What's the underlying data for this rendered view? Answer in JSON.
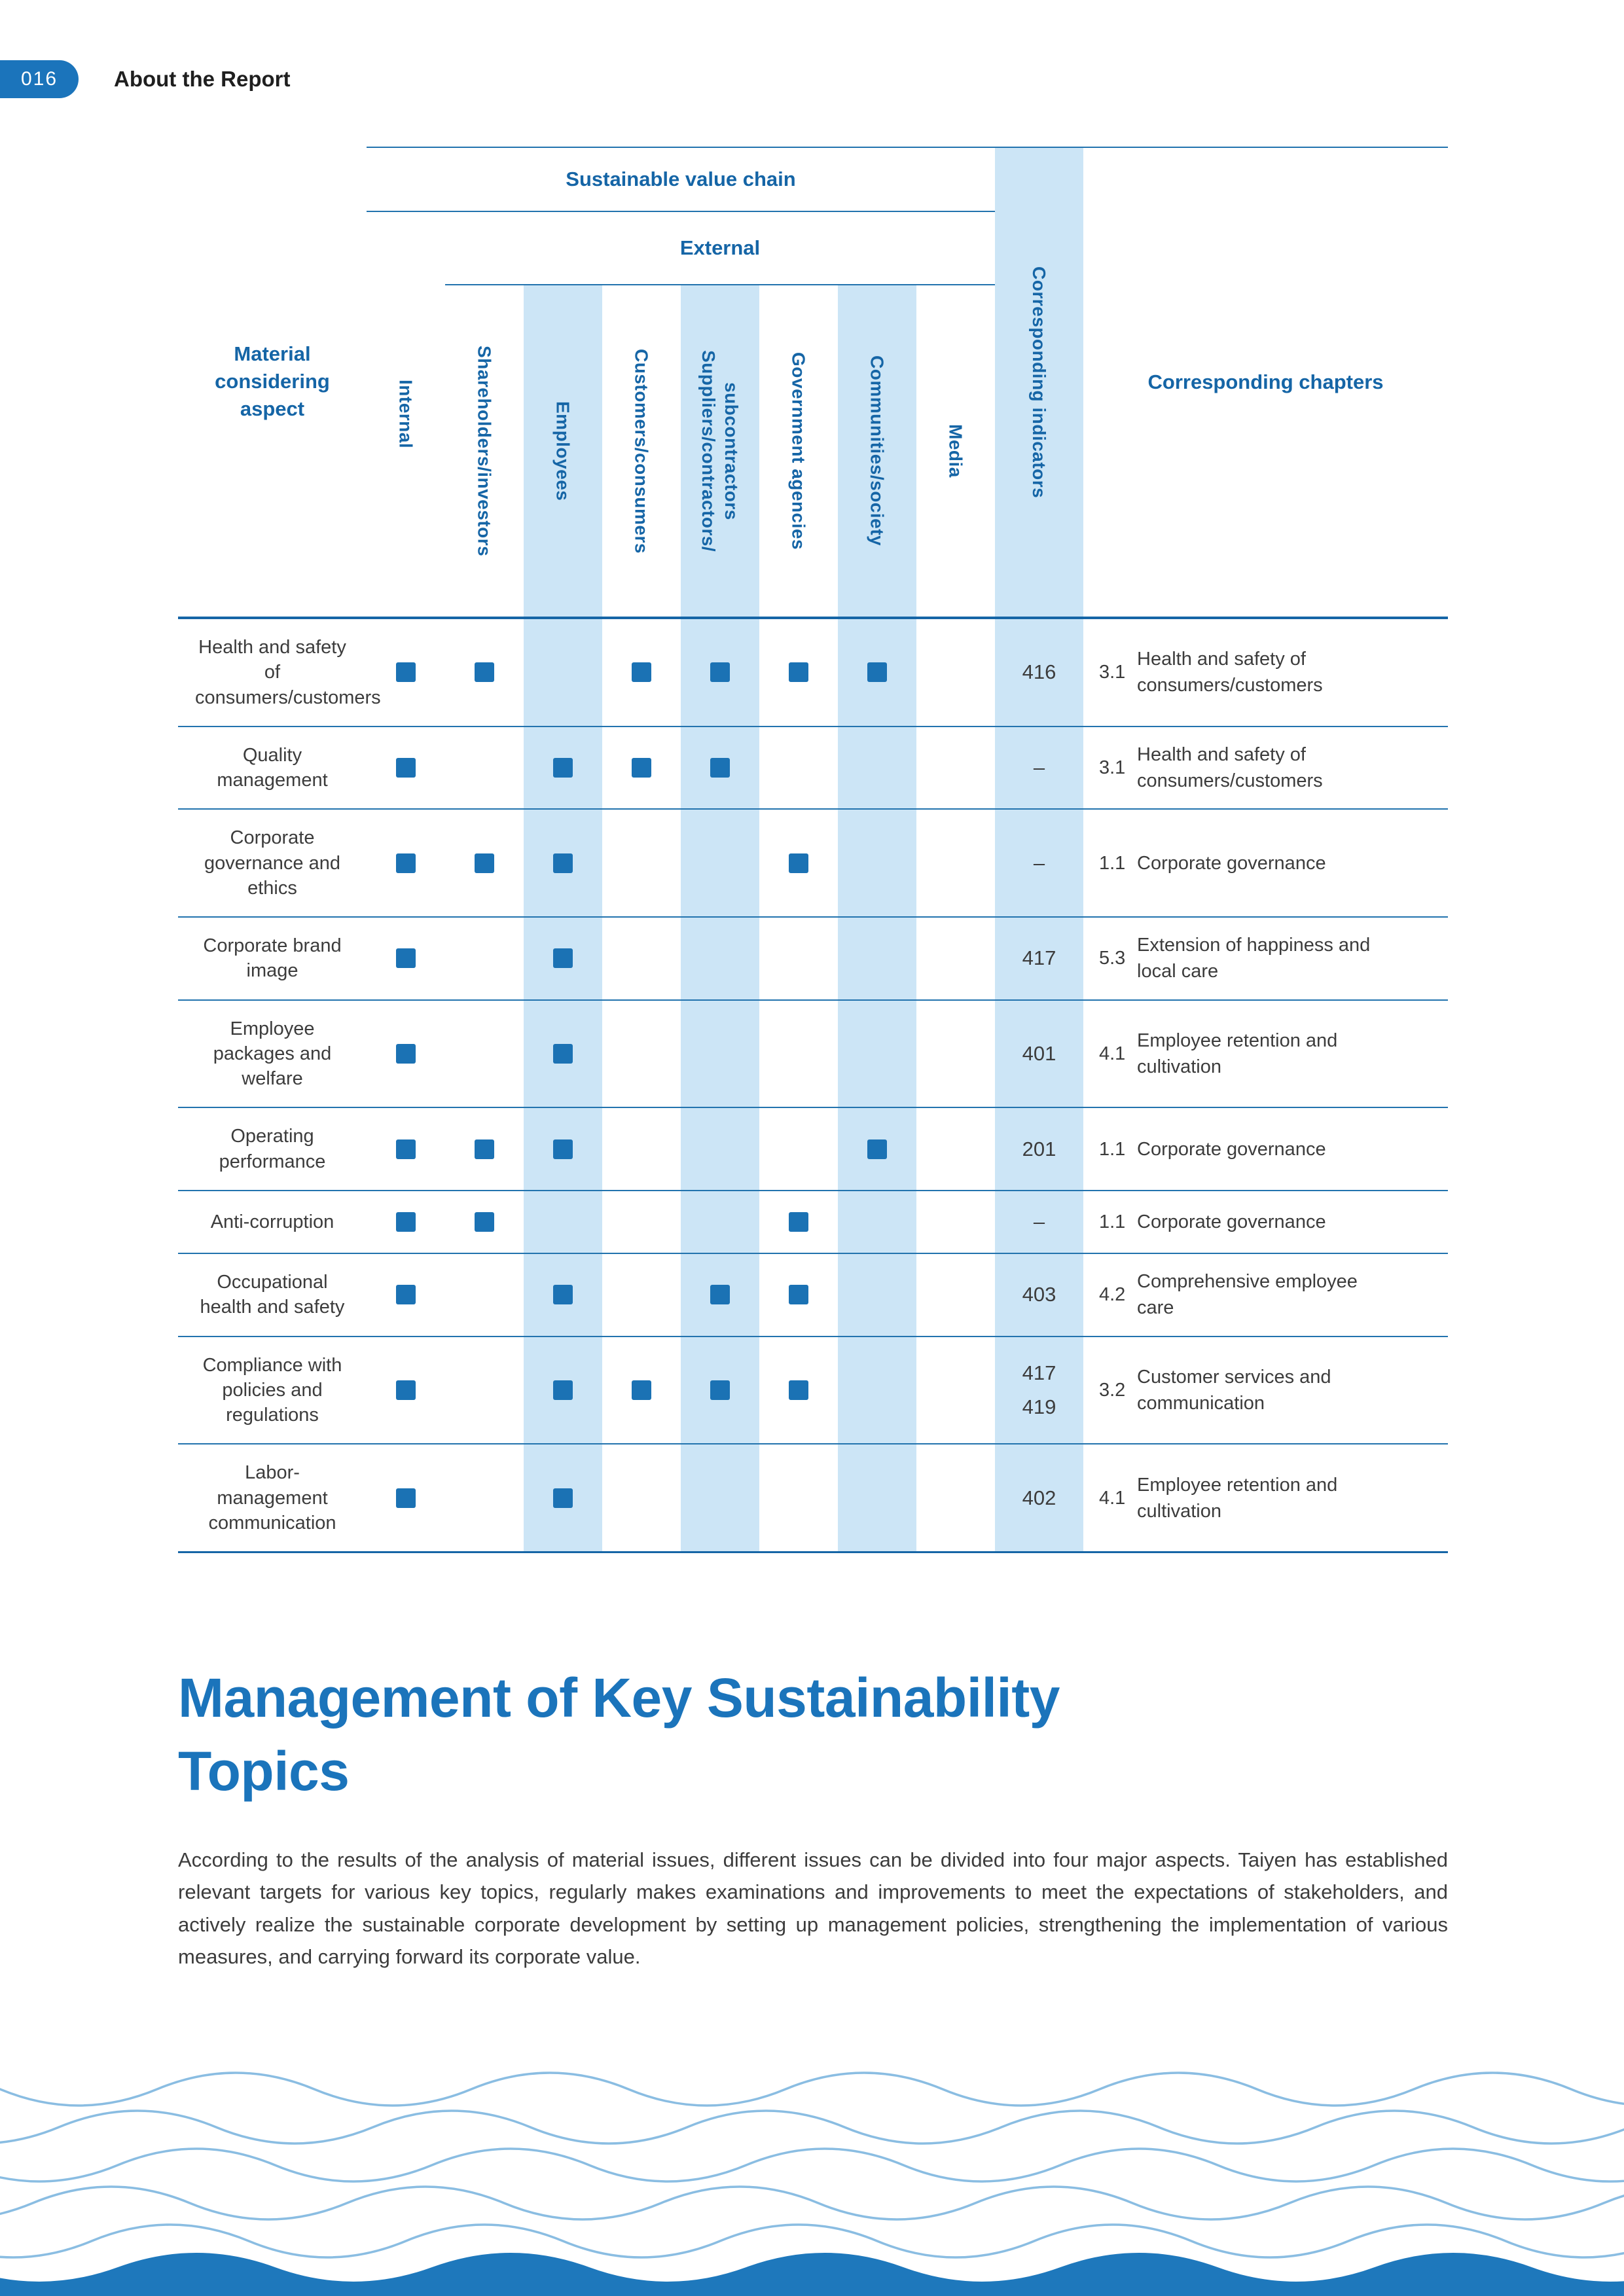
{
  "page": {
    "number": "016",
    "section_title": "About the Report"
  },
  "table": {
    "headers": {
      "material_aspect": "Material considering aspect",
      "value_chain": "Sustainable value chain",
      "external": "External",
      "indicators": "Corresponding indicators",
      "chapters": "Corresponding chapters"
    },
    "stakeholders": [
      "Internal",
      "Shareholders/investors",
      "Employees",
      "Customers/consumers",
      "Suppliers/contractors/\nsubcontractors",
      "Government agencies",
      "Communities/society",
      "Media"
    ],
    "rows": [
      {
        "aspect": "Health and safety of consumers/customers",
        "marks": [
          1,
          1,
          0,
          1,
          1,
          1,
          1,
          0
        ],
        "indicators": [
          "416"
        ],
        "chapter_ref": "3.1",
        "chapter_title": "Health and safety of consumers/customers"
      },
      {
        "aspect": "Quality management",
        "marks": [
          1,
          0,
          1,
          1,
          1,
          0,
          0,
          0
        ],
        "indicators": [
          "–"
        ],
        "chapter_ref": "3.1",
        "chapter_title": "Health and safety of consumers/customers"
      },
      {
        "aspect": "Corporate governance and ethics",
        "marks": [
          1,
          1,
          1,
          0,
          0,
          1,
          0,
          0
        ],
        "indicators": [
          "–"
        ],
        "chapter_ref": "1.1",
        "chapter_title": "Corporate governance"
      },
      {
        "aspect": "Corporate brand image",
        "marks": [
          1,
          0,
          1,
          0,
          0,
          0,
          0,
          0
        ],
        "indicators": [
          "417"
        ],
        "chapter_ref": "5.3",
        "chapter_title": "Extension of happiness and local care"
      },
      {
        "aspect": "Employee packages and welfare",
        "marks": [
          1,
          0,
          1,
          0,
          0,
          0,
          0,
          0
        ],
        "indicators": [
          "401"
        ],
        "chapter_ref": "4.1",
        "chapter_title": "Employee retention and cultivation"
      },
      {
        "aspect": "Operating performance",
        "marks": [
          1,
          1,
          1,
          0,
          0,
          0,
          1,
          0
        ],
        "indicators": [
          "201"
        ],
        "chapter_ref": "1.1",
        "chapter_title": "Corporate governance"
      },
      {
        "aspect": "Anti-corruption",
        "marks": [
          1,
          1,
          0,
          0,
          0,
          1,
          0,
          0
        ],
        "indicators": [
          "–"
        ],
        "chapter_ref": "1.1",
        "chapter_title": "Corporate governance"
      },
      {
        "aspect": "Occupational health and safety",
        "marks": [
          1,
          0,
          1,
          0,
          1,
          1,
          0,
          0
        ],
        "indicators": [
          "403"
        ],
        "chapter_ref": "4.2",
        "chapter_title": "Comprehensive employee care"
      },
      {
        "aspect": "Compliance with policies and regulations",
        "marks": [
          1,
          0,
          1,
          1,
          1,
          1,
          0,
          0
        ],
        "indicators": [
          "417",
          "419"
        ],
        "chapter_ref": "3.2",
        "chapter_title": "Customer services and communication"
      },
      {
        "aspect": "Labor-management communication",
        "marks": [
          1,
          0,
          1,
          0,
          0,
          0,
          0,
          0
        ],
        "indicators": [
          "402"
        ],
        "chapter_ref": "4.1",
        "chapter_title": "Employee retention and cultivation"
      }
    ]
  },
  "section": {
    "title": "Management of Key Sustainability Topics",
    "body": "According to the results of the analysis of material issues, different issues can be divided into four major aspects. Taiyen has established relevant targets for various key topics, regularly makes examinations and improvements to meet the expectations of stakeholders, and actively realize the sustainable corporate development by setting up management policies, strengthening the implementation of various measures, and carrying forward its corporate value."
  },
  "colors": {
    "accent_blue": "#1b74bb",
    "header_blue": "#1565a6",
    "stripe_blue": "#cce5f6",
    "mark_blue": "#1b72b4",
    "body_text": "#3c3c3c"
  }
}
